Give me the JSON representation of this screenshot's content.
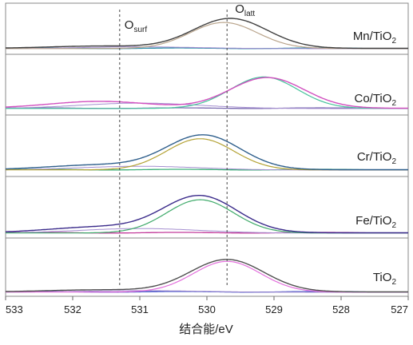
{
  "chart_data": {
    "type": "line",
    "title": "",
    "xlabel": "结合能/eV",
    "ylabel": "",
    "x_range": [
      533,
      527
    ],
    "x_reversed": true,
    "x_ticks": [
      "533",
      "532",
      "531",
      "530",
      "529",
      "528",
      "527"
    ],
    "grid": false,
    "reference_lines": [
      {
        "label_main": "O",
        "label_sub": "surf",
        "x": 531.3
      },
      {
        "label_main": "O",
        "label_sub": "latt",
        "x": 529.7
      }
    ],
    "panels": [
      {
        "label_main": "Mn/TiO",
        "label_sub": "2",
        "peak_x": 529.65,
        "peak_height": 0.78,
        "fit_peak_x": 529.75,
        "fit_peak_height": 0.68,
        "surf_height": 0.06,
        "envelope_color": "#404040",
        "fit_color": "#b8a38a",
        "baseline_color": "#2d8ca8"
      },
      {
        "label_main": "Co/TiO",
        "label_sub": "2",
        "peak_x": 529.1,
        "peak_height": 0.8,
        "fit_peak_x": 529.15,
        "fit_peak_height": 0.82,
        "surf_height": 0.18,
        "envelope_color": "#d14fbf",
        "fit_color": "#44c29a",
        "baseline_color": "#7a6ab0"
      },
      {
        "label_main": "Cr/TiO",
        "label_sub": "2",
        "peak_x": 530.05,
        "peak_height": 0.86,
        "fit_peak_x": 530.1,
        "fit_peak_height": 0.78,
        "surf_height": 0.12,
        "envelope_color": "#2f5f8c",
        "fit_color": "#b4a235",
        "baseline_color": "#3fb07a"
      },
      {
        "label_main": "Fe/TiO",
        "label_sub": "2",
        "peak_x": 530.1,
        "peak_height": 0.88,
        "fit_peak_x": 530.1,
        "fit_peak_height": 0.8,
        "surf_height": 0.14,
        "envelope_color": "#3a2a8a",
        "fit_color": "#3faa6a",
        "baseline_color": "#c23a9a"
      },
      {
        "label_main": "TiO",
        "label_sub": "2",
        "peak_x": 529.7,
        "peak_height": 0.78,
        "fit_peak_x": 529.7,
        "fit_peak_height": 0.74,
        "surf_height": 0.05,
        "envelope_color": "#505050",
        "fit_color": "#e36fdc",
        "baseline_color": "#4a5acd"
      }
    ]
  }
}
